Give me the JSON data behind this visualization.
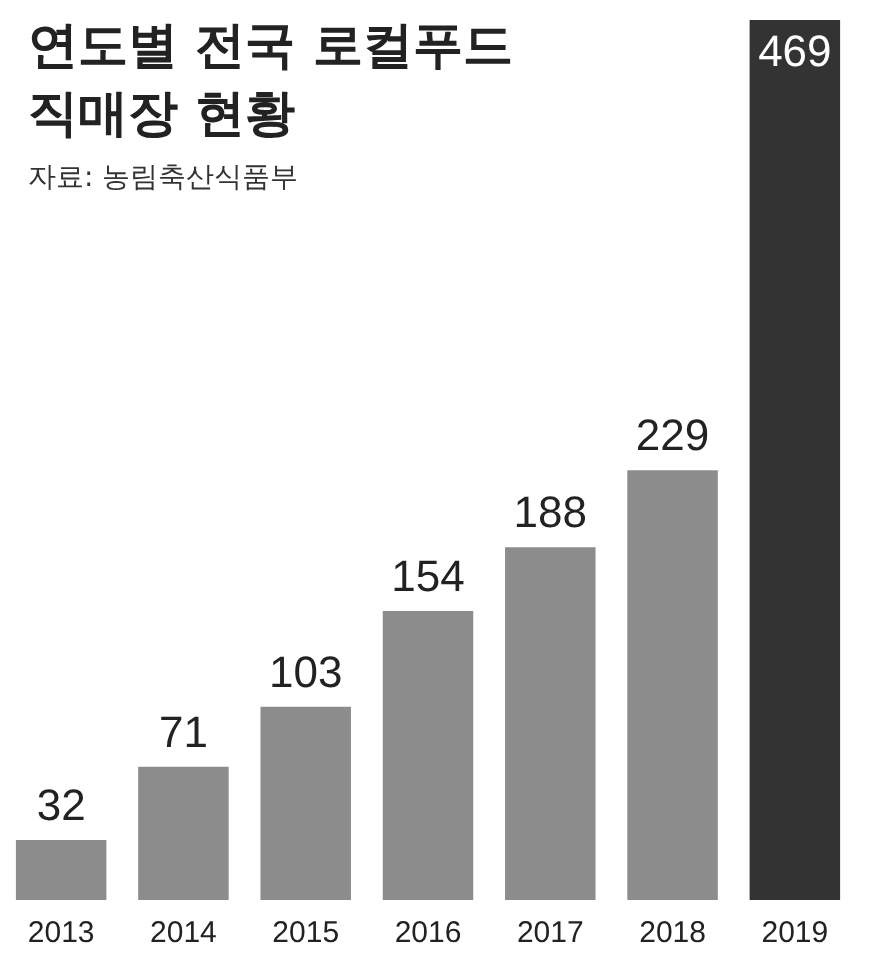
{
  "chart_data": {
    "type": "bar",
    "title": "연도별 전국 로컬푸드 직매장 현황",
    "subtitle": "자료: 농림축산식품부",
    "categories": [
      "2013",
      "2014",
      "2015",
      "2016",
      "2017",
      "2018",
      "2019"
    ],
    "values": [
      32,
      71,
      103,
      154,
      188,
      229,
      469
    ],
    "colors": [
      "#8c8c8c",
      "#8c8c8c",
      "#8c8c8c",
      "#8c8c8c",
      "#8c8c8c",
      "#8c8c8c",
      "#333333"
    ],
    "data_labels": true,
    "grid": false,
    "legend": false
  }
}
